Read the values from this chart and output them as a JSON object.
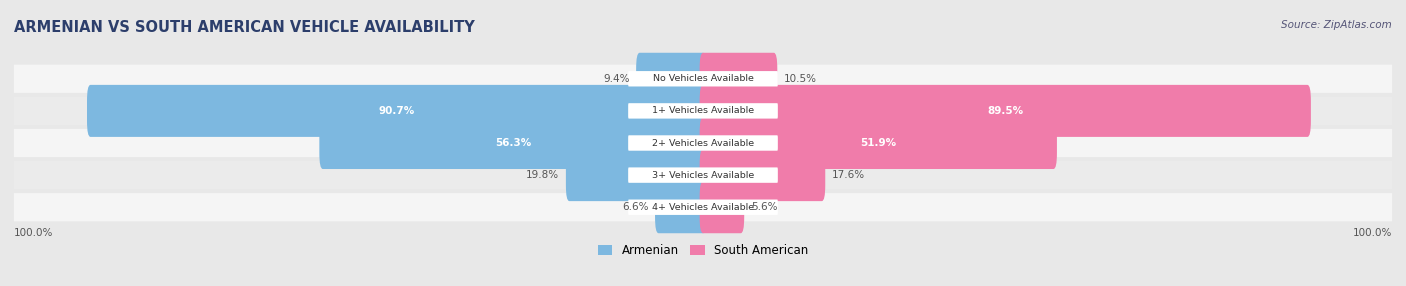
{
  "title": "ARMENIAN VS SOUTH AMERICAN VEHICLE AVAILABILITY",
  "source": "Source: ZipAtlas.com",
  "categories": [
    "No Vehicles Available",
    "1+ Vehicles Available",
    "2+ Vehicles Available",
    "3+ Vehicles Available",
    "4+ Vehicles Available"
  ],
  "armenian_values": [
    9.4,
    90.7,
    56.3,
    19.8,
    6.6
  ],
  "south_american_values": [
    10.5,
    89.5,
    51.9,
    17.6,
    5.6
  ],
  "armenian_color": "#7db8e0",
  "south_american_color": "#f07caa",
  "background_color": "#e8e8e8",
  "row_background_light": "#f5f5f5",
  "row_background_dark": "#e0e0e0",
  "legend_armenian": "Armenian",
  "legend_south_american": "South American",
  "title_color": "#2c3e6b",
  "source_color": "#555577",
  "label_outside_color": "#555555",
  "label_inside_color": "#ffffff",
  "axis_label_color": "#555555"
}
